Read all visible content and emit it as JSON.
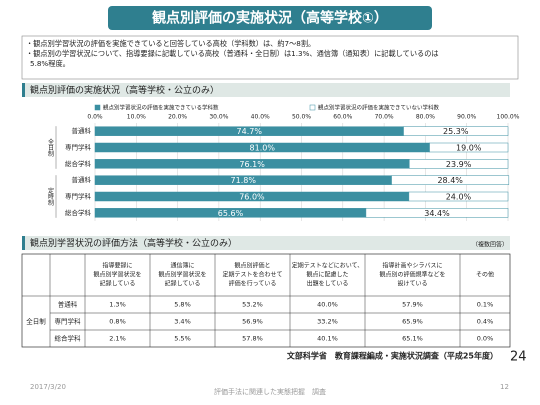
{
  "header": {
    "title": "観点別評価の実施状況（高等学校①）"
  },
  "bullets": [
    [
      "・観点別学習状況の評価を実施できていると回答している高校（学科数）は、約7～8割。"
    ],
    [
      "・観点別の学習状況について、指導要録に記載している高校（普通科・全日制）は1.3%、通信簿（通知表）に記載しているのは",
      "5.8%程度。"
    ]
  ],
  "chart_data": {
    "type": "bar",
    "orientation": "horizontal",
    "stacked": true,
    "title": "観点別評価の実施状況（高等学校・公立のみ）",
    "group_labels": [
      "全日制",
      "定時制"
    ],
    "categories": [
      "普通科",
      "専門学科",
      "総合学科",
      "普通科",
      "専門学科",
      "総合学科"
    ],
    "series": [
      {
        "name": "観点別学習状況の評価を実施できている学科数",
        "color": "#3b8fa1",
        "values": [
          74.7,
          81.0,
          76.1,
          71.8,
          76.0,
          65.6
        ],
        "value_labels": [
          "74.7%",
          "81.0%",
          "76.1%",
          "71.8%",
          "76.0%",
          "65.6%"
        ]
      },
      {
        "name": "観点別学習状況の評価を実施できていない学科数",
        "color": "#ffffff",
        "values": [
          25.3,
          19.0,
          23.9,
          28.4,
          24.0,
          34.4
        ],
        "value_labels": [
          "25.3%",
          "19.0%",
          "23.9%",
          "28.4%",
          "24.0%",
          "34.4%"
        ]
      }
    ],
    "xlim": [
      0,
      100
    ],
    "xticks": [
      {
        "value": 0,
        "label": "0.0%"
      },
      {
        "value": 10,
        "label": "10.0%"
      },
      {
        "value": 20,
        "label": "20.0%"
      },
      {
        "value": 30,
        "label": "30.0%"
      },
      {
        "value": 40,
        "label": "40.0%"
      },
      {
        "value": 50,
        "label": "50.0%"
      },
      {
        "value": 60,
        "label": "60.0%"
      },
      {
        "value": 70,
        "label": "70.0%"
      },
      {
        "value": 80,
        "label": "80.0%"
      },
      {
        "value": 90,
        "label": "90.0%"
      },
      {
        "value": 100,
        "label": "100.0%"
      }
    ],
    "grid": true,
    "legend": "top"
  },
  "table": {
    "title": "観点別学習状況の評価方法（高等学校・公立のみ）",
    "note": "（複数回答）",
    "group": "全日制",
    "header": [
      [
        "指導要録に",
        "観点別学習状況を",
        "記録している"
      ],
      [
        "通信簿に",
        "観点別学習状況を",
        "記録している"
      ],
      [
        "観点別評価と",
        "定期テストを合わせて",
        "評価を行っている"
      ],
      [
        "定期テストなどにおいて、",
        "観点に配慮した",
        "出題をしている"
      ],
      [
        "指導計画やシラバスに",
        "観点別の評価規準などを",
        "設けている"
      ],
      [
        "その他"
      ]
    ],
    "rows": [
      [
        "普通科",
        "1.3%",
        "5.8%",
        "53.2%",
        "40.0%",
        "57.9%",
        "0.1%"
      ],
      [
        "専門学科",
        "0.8%",
        "3.4%",
        "56.9%",
        "33.2%",
        "65.9%",
        "0.4%"
      ],
      [
        "総合学科",
        "2.1%",
        "5.5%",
        "57.8%",
        "40.1%",
        "65.1%",
        "0.0%"
      ]
    ]
  },
  "source": "文部科学省　教育課程編成・実施状況調査（平成25年度）",
  "slide_number": "24",
  "footer": {
    "date": "2017/3/20",
    "center": "評価手法に関連した実態把握　調査",
    "page": "12"
  }
}
